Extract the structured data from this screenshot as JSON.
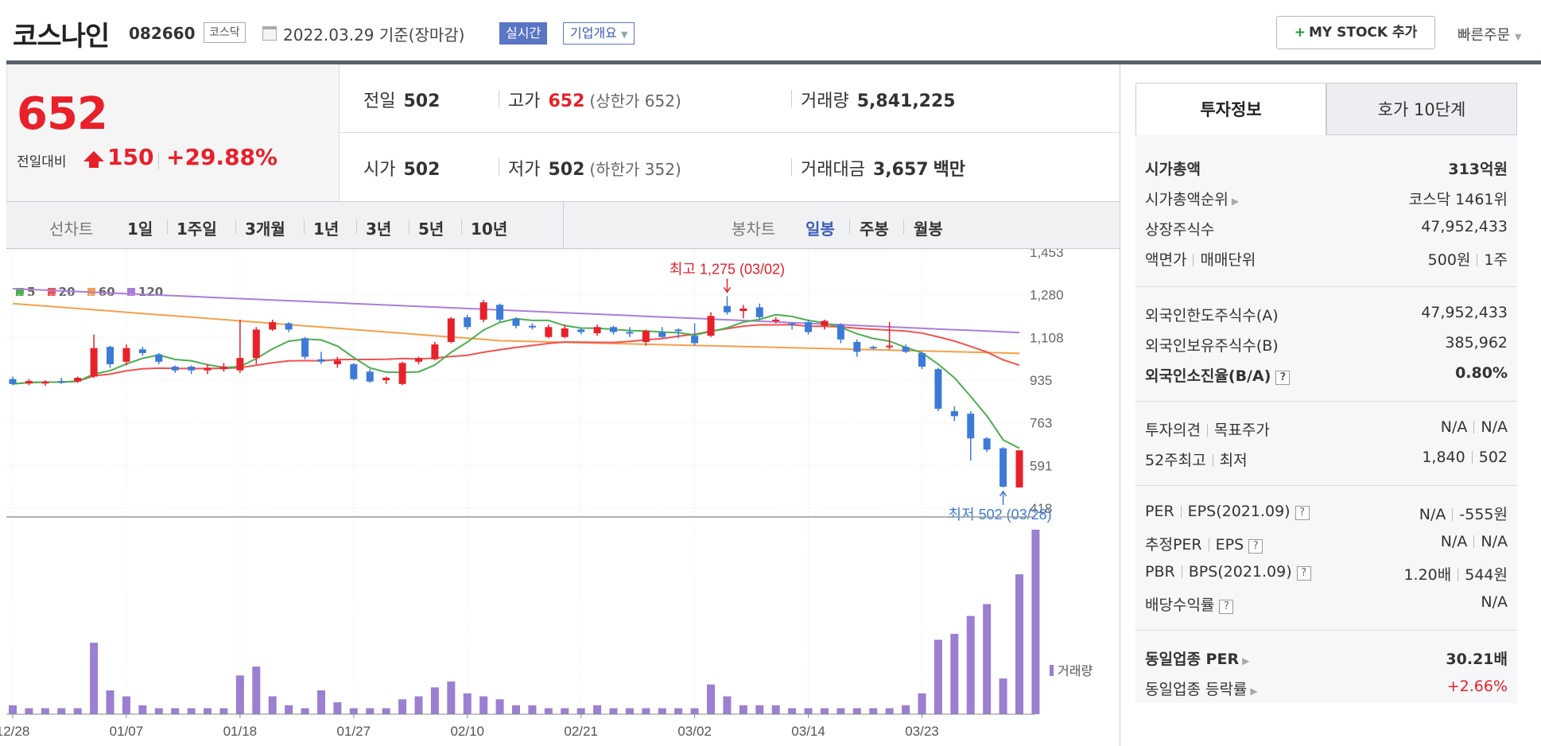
{
  "header": {
    "name": "코스나인",
    "code": "082660",
    "market": "코스닥",
    "date": "2022.03.29 기준(장마감)",
    "realtime_btn": "실시간",
    "company_info_btn": "기업개요",
    "mystock_btn": "MY STOCK 추가",
    "mystock_plus": "+",
    "quick_order": "빠른주문"
  },
  "quote": {
    "price": "652",
    "diff_label": "전일대비",
    "diff": "150",
    "rate": "+29.88%",
    "prev_label": "전일",
    "prev": "502",
    "open_label": "시가",
    "open": "502",
    "high_label": "고가",
    "high": "652",
    "high_sub": "(상한가 652)",
    "low_label": "저가",
    "low": "502",
    "low_sub": "(하한가 352)",
    "volume_label": "거래량",
    "volume": "5,841,225",
    "amount_label": "거래대금",
    "amount": "3,657",
    "amount_unit": "백만"
  },
  "chart_nav": {
    "line_label": "선차트",
    "line_items": [
      "1일",
      "1주일",
      "3개월",
      "1년",
      "3년",
      "5년",
      "10년"
    ],
    "candle_label": "봉차트",
    "candle_items": [
      "일봉",
      "주봉",
      "월봉"
    ],
    "candle_selected": "일봉"
  },
  "chart_data": {
    "type": "candlestick",
    "legend": [
      {
        "name": "5",
        "color": "#4caf50"
      },
      {
        "name": "20",
        "color": "#ef5350"
      },
      {
        "name": "60",
        "color": "#f5a04a"
      },
      {
        "name": "120",
        "color": "#ab7ddb"
      }
    ],
    "yticks": [
      "1,453",
      "1,280",
      "1,108",
      "935",
      "763",
      "591",
      "418"
    ],
    "ylim": [
      418,
      1453
    ],
    "xticks": [
      {
        "i": 0,
        "label": "12/28"
      },
      {
        "i": 7,
        "label": "01/07"
      },
      {
        "i": 14,
        "label": "01/18"
      },
      {
        "i": 21,
        "label": "01/27"
      },
      {
        "i": 28,
        "label": "02/10"
      },
      {
        "i": 35,
        "label": "02/21"
      },
      {
        "i": 42,
        "label": "03/02"
      },
      {
        "i": 49,
        "label": "03/14"
      },
      {
        "i": 56,
        "label": "03/23"
      }
    ],
    "high_annotation": "최고 1,275 (03/02)",
    "low_annotation": "최저 502 (03/28)",
    "volume_label": "거래량",
    "up_color": "#e8202a",
    "down_color": "#3d7ad8",
    "candles": [
      {
        "o": 940,
        "h": 950,
        "l": 915,
        "c": 920
      },
      {
        "o": 922,
        "h": 940,
        "l": 915,
        "c": 932
      },
      {
        "o": 922,
        "h": 935,
        "l": 912,
        "c": 930
      },
      {
        "o": 932,
        "h": 945,
        "l": 920,
        "c": 928
      },
      {
        "o": 930,
        "h": 950,
        "l": 925,
        "c": 945
      },
      {
        "o": 950,
        "h": 1120,
        "l": 945,
        "c": 1065
      },
      {
        "o": 1070,
        "h": 1075,
        "l": 985,
        "c": 1000
      },
      {
        "o": 1010,
        "h": 1080,
        "l": 995,
        "c": 1065
      },
      {
        "o": 1060,
        "h": 1070,
        "l": 1035,
        "c": 1045
      },
      {
        "o": 1040,
        "h": 1045,
        "l": 1000,
        "c": 1010
      },
      {
        "o": 990,
        "h": 995,
        "l": 965,
        "c": 975
      },
      {
        "o": 990,
        "h": 995,
        "l": 960,
        "c": 975
      },
      {
        "o": 975,
        "h": 1000,
        "l": 960,
        "c": 985
      },
      {
        "o": 980,
        "h": 1005,
        "l": 970,
        "c": 990
      },
      {
        "o": 975,
        "h": 1180,
        "l": 965,
        "c": 1025
      },
      {
        "o": 1025,
        "h": 1150,
        "l": 1000,
        "c": 1140
      },
      {
        "o": 1140,
        "h": 1180,
        "l": 1135,
        "c": 1170
      },
      {
        "o": 1165,
        "h": 1170,
        "l": 1130,
        "c": 1140
      },
      {
        "o": 1105,
        "h": 1110,
        "l": 1020,
        "c": 1030
      },
      {
        "o": 1020,
        "h": 1050,
        "l": 1000,
        "c": 1010
      },
      {
        "o": 1000,
        "h": 1030,
        "l": 985,
        "c": 1015
      },
      {
        "o": 1000,
        "h": 1005,
        "l": 935,
        "c": 940
      },
      {
        "o": 970,
        "h": 980,
        "l": 925,
        "c": 930
      },
      {
        "o": 935,
        "h": 950,
        "l": 920,
        "c": 945
      },
      {
        "o": 920,
        "h": 1010,
        "l": 915,
        "c": 1005
      },
      {
        "o": 1010,
        "h": 1030,
        "l": 1000,
        "c": 1025
      },
      {
        "o": 1020,
        "h": 1090,
        "l": 1015,
        "c": 1080
      },
      {
        "o": 1090,
        "h": 1190,
        "l": 1085,
        "c": 1185
      },
      {
        "o": 1190,
        "h": 1200,
        "l": 1140,
        "c": 1150
      },
      {
        "o": 1180,
        "h": 1260,
        "l": 1170,
        "c": 1250
      },
      {
        "o": 1240,
        "h": 1245,
        "l": 1170,
        "c": 1180
      },
      {
        "o": 1185,
        "h": 1190,
        "l": 1145,
        "c": 1155
      },
      {
        "o": 1155,
        "h": 1165,
        "l": 1140,
        "c": 1150
      },
      {
        "o": 1110,
        "h": 1160,
        "l": 1105,
        "c": 1150
      },
      {
        "o": 1110,
        "h": 1160,
        "l": 1105,
        "c": 1145
      },
      {
        "o": 1140,
        "h": 1145,
        "l": 1120,
        "c": 1130
      },
      {
        "o": 1125,
        "h": 1160,
        "l": 1115,
        "c": 1150
      },
      {
        "o": 1150,
        "h": 1155,
        "l": 1120,
        "c": 1130
      },
      {
        "o": 1130,
        "h": 1150,
        "l": 1110,
        "c": 1125
      },
      {
        "o": 1090,
        "h": 1140,
        "l": 1075,
        "c": 1135
      },
      {
        "o": 1130,
        "h": 1150,
        "l": 1105,
        "c": 1110
      },
      {
        "o": 1140,
        "h": 1145,
        "l": 1105,
        "c": 1135
      },
      {
        "o": 1115,
        "h": 1165,
        "l": 1075,
        "c": 1085
      },
      {
        "o": 1115,
        "h": 1210,
        "l": 1110,
        "c": 1195
      },
      {
        "o": 1235,
        "h": 1275,
        "l": 1200,
        "c": 1210
      },
      {
        "o": 1215,
        "h": 1240,
        "l": 1185,
        "c": 1225
      },
      {
        "o": 1230,
        "h": 1245,
        "l": 1180,
        "c": 1190
      },
      {
        "o": 1175,
        "h": 1190,
        "l": 1165,
        "c": 1180
      },
      {
        "o": 1165,
        "h": 1170,
        "l": 1140,
        "c": 1160
      },
      {
        "o": 1170,
        "h": 1180,
        "l": 1120,
        "c": 1130
      },
      {
        "o": 1155,
        "h": 1180,
        "l": 1140,
        "c": 1175
      },
      {
        "o": 1160,
        "h": 1165,
        "l": 1085,
        "c": 1100
      },
      {
        "o": 1090,
        "h": 1100,
        "l": 1030,
        "c": 1050
      },
      {
        "o": 1070,
        "h": 1075,
        "l": 1060,
        "c": 1065
      },
      {
        "o": 1070,
        "h": 1170,
        "l": 1060,
        "c": 1075
      },
      {
        "o": 1070,
        "h": 1080,
        "l": 1045,
        "c": 1050
      },
      {
        "o": 1045,
        "h": 1050,
        "l": 980,
        "c": 990
      },
      {
        "o": 980,
        "h": 985,
        "l": 810,
        "c": 820
      },
      {
        "o": 810,
        "h": 830,
        "l": 770,
        "c": 790
      },
      {
        "o": 800,
        "h": 810,
        "l": 610,
        "c": 700
      },
      {
        "o": 700,
        "h": 705,
        "l": 645,
        "c": 655
      },
      {
        "o": 660,
        "h": 665,
        "l": 502,
        "c": 505
      },
      {
        "o": 502,
        "h": 652,
        "l": 502,
        "c": 652
      }
    ],
    "volumes": [
      3,
      2,
      2,
      2,
      2,
      24,
      8,
      6,
      3,
      2,
      2,
      2,
      2,
      2,
      13,
      16,
      6,
      3,
      2,
      8,
      4,
      2,
      2,
      2,
      5,
      6,
      9,
      11,
      7,
      6,
      5,
      3,
      3,
      2,
      2,
      2,
      3,
      2,
      2,
      2,
      2,
      2,
      2,
      10,
      6,
      3,
      3,
      3,
      2,
      2,
      2,
      2,
      2,
      2,
      2,
      3,
      7,
      25,
      27,
      33,
      37,
      12,
      47,
      62
    ]
  },
  "invest": {
    "tab_a": "투자정보",
    "tab_b": "호가 10단계",
    "rows1": [
      {
        "k": "시가총액",
        "v": "313",
        "vunit": "억원"
      },
      {
        "k": "시가총액순위",
        "v": "코스닥 1461위"
      },
      {
        "k": "상장주식수",
        "v": "47,952,433"
      },
      {
        "k1": "액면가",
        "k2": "매매단위",
        "v1": "500원",
        "v2": "1주"
      }
    ],
    "rows2": [
      {
        "k": "외국인한도주식수(A)",
        "v": "47,952,433"
      },
      {
        "k": "외국인보유주식수(B)",
        "v": "385,962"
      },
      {
        "k": "외국인소진율(B/A)",
        "v": "0.80%"
      }
    ],
    "rows3": [
      {
        "k1": "투자의견",
        "k2": "목표주가",
        "v1": "N/A",
        "v2": "N/A"
      },
      {
        "k1": "52주최고",
        "k2": "최저",
        "v1": "1,840",
        "v2": "502"
      }
    ],
    "rows4": [
      {
        "k1": "PER",
        "k2": "EPS(2021.09)",
        "v1": "N/A",
        "v2": "-555원"
      },
      {
        "k1": "추정PER",
        "k2": "EPS",
        "v1": "N/A",
        "v2": "N/A"
      },
      {
        "k1": "PBR",
        "k2": "BPS(2021.09)",
        "v1": "1.20배",
        "v2": "544원"
      },
      {
        "k": "배당수익률",
        "v": "N/A"
      }
    ],
    "rows5": [
      {
        "k": "동일업종 PER",
        "v": "30.21",
        "vunit": "배"
      },
      {
        "k": "동일업종 등락률",
        "v": "+2.66%"
      }
    ],
    "q_icon": "?"
  }
}
